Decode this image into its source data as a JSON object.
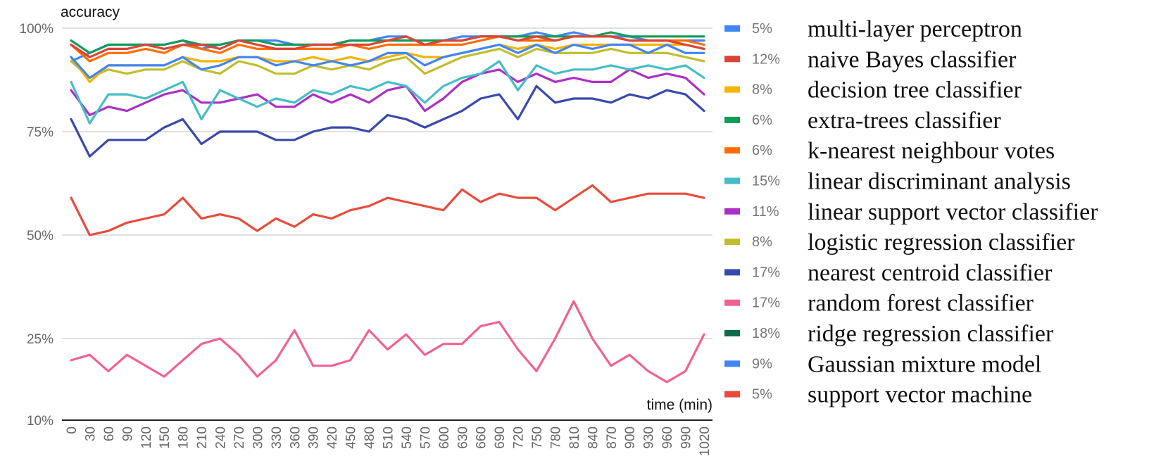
{
  "chart_data": {
    "type": "line",
    "ylabel": "accuracy",
    "xlabel": "time (min)",
    "y_ticks": [
      {
        "value": 10,
        "label": "10%"
      },
      {
        "value": 25,
        "label": "25%"
      },
      {
        "value": 50,
        "label": "50%"
      },
      {
        "value": 75,
        "label": "75%"
      },
      {
        "value": 100,
        "label": "100%"
      }
    ],
    "x": [
      "0",
      "30",
      "60",
      "90",
      "120",
      "150",
      "180",
      "210",
      "240",
      "270",
      "300",
      "330",
      "360",
      "390",
      "420",
      "450",
      "480",
      "510",
      "540",
      "570",
      "600",
      "630",
      "660",
      "690",
      "720",
      "750",
      "780",
      "810",
      "840",
      "870",
      "900",
      "930",
      "960",
      "990",
      "1020"
    ],
    "series": [
      {
        "name": "multi-layer perceptron",
        "percent": "5%",
        "color": "#4285f4",
        "values": [
          93,
          88,
          91,
          91,
          91,
          91,
          93,
          90,
          91,
          93,
          93,
          91,
          92,
          91,
          92,
          91,
          92,
          94,
          94,
          91,
          93,
          94,
          95,
          96,
          94,
          96,
          94,
          96,
          95,
          96,
          96,
          94,
          96,
          94,
          94
        ]
      },
      {
        "name": "naive Bayes classifier",
        "percent": "12%",
        "color": "#db4437",
        "values": [
          96,
          93,
          95,
          95,
          96,
          95,
          96,
          96,
          95,
          97,
          96,
          95,
          95,
          96,
          96,
          96,
          96,
          97,
          98,
          96,
          97,
          97,
          98,
          98,
          97,
          98,
          97,
          98,
          98,
          98,
          97,
          97,
          97,
          96,
          95
        ]
      },
      {
        "name": "decision tree classifier",
        "percent": "8%",
        "color": "#f4b400",
        "values": [
          93,
          87,
          91,
          91,
          91,
          91,
          93,
          92,
          92,
          93,
          93,
          92,
          92,
          93,
          92,
          93,
          92,
          93,
          94,
          93,
          93,
          94,
          95,
          96,
          95,
          96,
          95,
          96,
          96,
          96,
          96,
          96,
          96,
          96,
          95
        ]
      },
      {
        "name": "extra-trees classifier",
        "percent": "6%",
        "color": "#0f9d58",
        "values": [
          97,
          94,
          96,
          96,
          96,
          96,
          97,
          96,
          96,
          97,
          97,
          96,
          96,
          96,
          96,
          97,
          97,
          97,
          97,
          97,
          97,
          97,
          98,
          98,
          98,
          98,
          98,
          98,
          98,
          99,
          98,
          98,
          98,
          98,
          98
        ]
      },
      {
        "name": "k-nearest neighbour votes",
        "percent": "6%",
        "color": "#ff6d01",
        "values": [
          96,
          92,
          94,
          94,
          95,
          94,
          96,
          95,
          94,
          96,
          95,
          95,
          95,
          95,
          95,
          96,
          95,
          96,
          96,
          96,
          96,
          96,
          97,
          98,
          97,
          97,
          97,
          98,
          98,
          98,
          97,
          97,
          97,
          97,
          96
        ]
      },
      {
        "name": "linear discriminant analysis",
        "percent": "15%",
        "color": "#46bdc6",
        "values": [
          87,
          77,
          84,
          84,
          83,
          85,
          87,
          78,
          85,
          83,
          81,
          83,
          82,
          85,
          84,
          86,
          85,
          87,
          86,
          82,
          86,
          88,
          89,
          92,
          85,
          91,
          89,
          90,
          90,
          91,
          90,
          91,
          90,
          91,
          88
        ]
      },
      {
        "name": "linear support vector classifier",
        "percent": "11%",
        "color": "#ab30c4",
        "values": [
          85,
          79,
          81,
          80,
          82,
          84,
          85,
          82,
          82,
          83,
          84,
          81,
          81,
          84,
          82,
          84,
          82,
          85,
          86,
          80,
          83,
          87,
          89,
          90,
          87,
          89,
          87,
          88,
          87,
          87,
          90,
          88,
          89,
          88,
          84
        ]
      },
      {
        "name": "logistic regression classifier",
        "percent": "8%",
        "color": "#c0be2c",
        "values": [
          92,
          88,
          90,
          89,
          90,
          90,
          92,
          90,
          89,
          92,
          91,
          89,
          89,
          91,
          90,
          91,
          90,
          92,
          93,
          89,
          91,
          93,
          94,
          95,
          93,
          95,
          94,
          94,
          94,
          95,
          94,
          94,
          94,
          93,
          92
        ]
      },
      {
        "name": "nearest centroid classifier",
        "percent": "17%",
        "color": "#3949ab",
        "values": [
          78,
          69,
          73,
          73,
          73,
          76,
          78,
          72,
          75,
          75,
          75,
          73,
          73,
          75,
          76,
          76,
          75,
          79,
          78,
          76,
          78,
          80,
          83,
          84,
          78,
          86,
          82,
          83,
          83,
          82,
          84,
          83,
          85,
          84,
          80
        ]
      },
      {
        "name": "random forest classifier",
        "percent": "17%",
        "color": "#f06292",
        "values": [
          21,
          22,
          19,
          22,
          20,
          18,
          21,
          24,
          25,
          22,
          18,
          21,
          27,
          20,
          20,
          21,
          27,
          23,
          26,
          22,
          24,
          24,
          28,
          29,
          23,
          19,
          25,
          34,
          25,
          20,
          22,
          19,
          17,
          19,
          26
        ]
      },
      {
        "name": "ridge regression classifier",
        "percent": "18%",
        "color": "#0d6b4d",
        "values": [
          null,
          null,
          null,
          null,
          null,
          null,
          null,
          null,
          null,
          null,
          null,
          null,
          null,
          null,
          null,
          null,
          null,
          null,
          null,
          null,
          null,
          null,
          null,
          null,
          null,
          null,
          null,
          null,
          null,
          null,
          null,
          null,
          null,
          null,
          null
        ]
      },
      {
        "name": "Gaussian mixture model",
        "percent": "9%",
        "color": "#4285f4",
        "values": [
          92,
          94,
          96,
          96,
          96,
          96,
          97,
          95,
          96,
          97,
          97,
          97,
          96,
          96,
          96,
          97,
          97,
          98,
          98,
          96,
          97,
          98,
          98,
          98,
          98,
          99,
          98,
          99,
          98,
          98,
          98,
          97,
          97,
          97,
          97
        ]
      },
      {
        "name": "support vector machine",
        "percent": "5%",
        "color": "#e74c3c",
        "values": [
          59,
          50,
          51,
          53,
          54,
          55,
          59,
          54,
          55,
          54,
          51,
          54,
          52,
          55,
          54,
          56,
          57,
          59,
          58,
          57,
          56,
          61,
          58,
          60,
          59,
          59,
          56,
          59,
          62,
          58,
          59,
          60,
          60,
          60,
          59
        ]
      }
    ]
  }
}
